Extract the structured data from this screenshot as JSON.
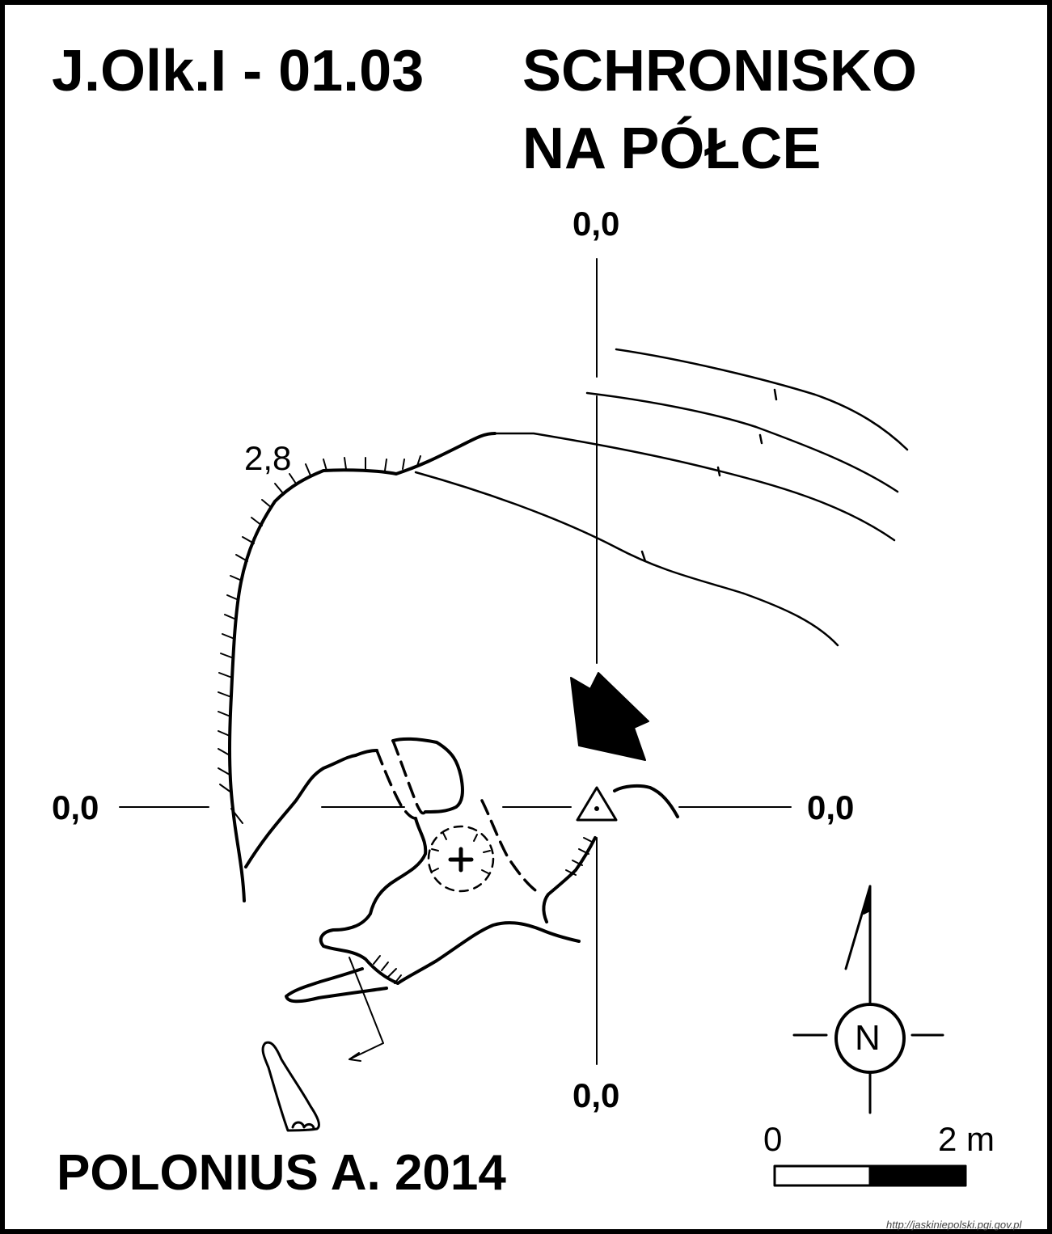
{
  "title": {
    "code": "J.Olk.I - 01.03",
    "name_line1": "SCHRONISKO",
    "name_line2": "NA PÓŁCE"
  },
  "author": "POLONIUS A. 2014",
  "coordinates": {
    "top": "0,0",
    "left": "0,0",
    "right": "0,0",
    "bottom": "0,0"
  },
  "depth_label": "2,8",
  "compass": {
    "letter": "N",
    "icon": "north-arrow-icon"
  },
  "scale_bar": {
    "start_label": "0",
    "end_label": "2 m"
  },
  "source_url": "http://jaskiniepolski.pgi.gov.pl",
  "colors": {
    "ink": "#000000",
    "paper": "#ffffff"
  }
}
